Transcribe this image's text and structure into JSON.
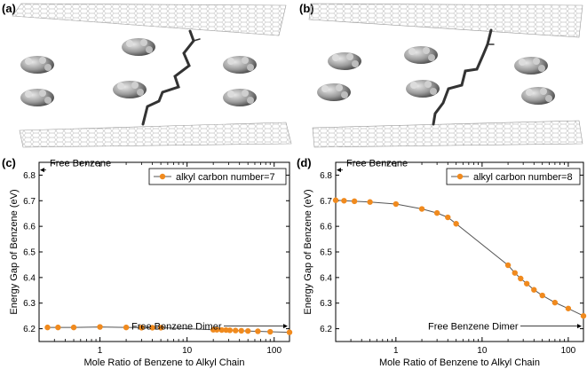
{
  "panels": {
    "a": {
      "label": "(a)"
    },
    "b": {
      "label": "(b)"
    },
    "c": {
      "label": "(c)"
    },
    "d": {
      "label": "(d)"
    }
  },
  "colors": {
    "series": "#f08a1e",
    "line": "#555555",
    "graphene": "#a8a8a8",
    "benzene": "#8a8a8a",
    "chain": "#333333"
  },
  "chart_data": [
    {
      "type": "line",
      "panel": "c",
      "xlabel": "Mole Ratio of Benzene to Alkyl Chain",
      "ylabel": "Energy Gap of Benzene (eV)",
      "xscale": "log",
      "xlim": [
        0.2,
        150
      ],
      "ylim": [
        6.15,
        6.85
      ],
      "xticks": [
        1,
        10,
        100
      ],
      "xtick_labels": [
        "1",
        "10",
        "100"
      ],
      "yticks": [
        6.2,
        6.3,
        6.4,
        6.5,
        6.6,
        6.7,
        6.8
      ],
      "ytick_labels": [
        "6.2",
        "6.3",
        "6.4",
        "6.5",
        "6.6",
        "6.7",
        "6.8"
      ],
      "series": [
        {
          "name": "alkyl carbon number=7",
          "x": [
            0.25,
            0.33,
            0.5,
            1,
            2,
            3,
            4,
            5,
            20,
            22,
            25,
            28,
            31,
            36,
            42,
            50,
            65,
            90,
            150
          ],
          "y": [
            6.205,
            6.205,
            6.205,
            6.207,
            6.205,
            6.204,
            6.204,
            6.204,
            6.196,
            6.196,
            6.195,
            6.195,
            6.194,
            6.193,
            6.192,
            6.191,
            6.19,
            6.188,
            6.186
          ]
        }
      ],
      "legend": "top-right",
      "annotations": {
        "free_benzene": {
          "text": "Free Benzene",
          "y": 6.82
        },
        "dimer": {
          "text": "Free Benzene Dimer",
          "y": 6.186
        }
      }
    },
    {
      "type": "line",
      "panel": "d",
      "xlabel": "Mole Ratio of Benzene to Alkyl Chain",
      "ylabel": "Energy Gap of Benzene (eV)",
      "xscale": "log",
      "xlim": [
        0.2,
        150
      ],
      "ylim": [
        6.15,
        6.85
      ],
      "xticks": [
        1,
        10,
        100
      ],
      "xtick_labels": [
        "1",
        "10",
        "100"
      ],
      "yticks": [
        6.2,
        6.3,
        6.4,
        6.5,
        6.6,
        6.7,
        6.8
      ],
      "ytick_labels": [
        "6.2",
        "6.3",
        "6.4",
        "6.5",
        "6.6",
        "6.7",
        "6.8"
      ],
      "series": [
        {
          "name": "alkyl carbon number=8",
          "x": [
            0.2,
            0.25,
            0.33,
            0.5,
            1,
            2,
            3,
            4,
            5,
            20,
            24,
            28,
            33,
            40,
            50,
            70,
            100,
            150
          ],
          "y": [
            6.702,
            6.7,
            6.698,
            6.695,
            6.687,
            6.668,
            6.652,
            6.635,
            6.61,
            6.448,
            6.418,
            6.396,
            6.376,
            6.352,
            6.33,
            6.302,
            6.279,
            6.25
          ]
        }
      ],
      "legend": "top-right",
      "annotations": {
        "free_benzene": {
          "text": "Free Benzene",
          "y": 6.82
        },
        "dimer": {
          "text": "Free Benzene Dimer",
          "y": 6.186
        }
      }
    }
  ]
}
